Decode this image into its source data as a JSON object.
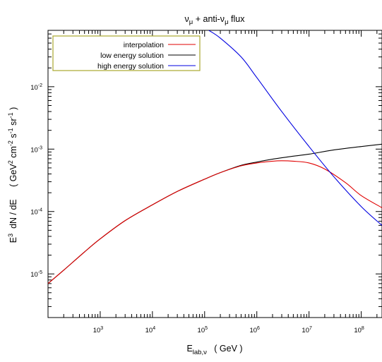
{
  "chart_data": {
    "type": "line",
    "title": {
      "base": "ν",
      "sub": "μ",
      "mid": " + anti-ν",
      "sub2": "μ",
      "tail": "  flux"
    },
    "xlabel": {
      "base": "E",
      "sub": "lab,ν",
      "tail": "   ( GeV )"
    },
    "ylabel": {
      "p1": "E",
      "sup1": "3",
      "p2": "  dN / dE     ( GeV",
      "sup2": "2",
      "p3": " cm",
      "sup3": "-2",
      "p4": " s",
      "sup4": "-1",
      "p5": " sr",
      "sup5": "-1",
      "p6": " )"
    },
    "x_scale": "log",
    "y_scale": "log",
    "xlim": [
      100,
      250000000
    ],
    "ylim": [
      2e-06,
      0.08
    ],
    "x_ticks": [
      {
        "value": 1000,
        "base": "10",
        "exp": "3"
      },
      {
        "value": 10000,
        "base": "10",
        "exp": "4"
      },
      {
        "value": 100000,
        "base": "10",
        "exp": "5"
      },
      {
        "value": 1000000,
        "base": "10",
        "exp": "6"
      },
      {
        "value": 10000000,
        "base": "10",
        "exp": "7"
      },
      {
        "value": 100000000,
        "base": "10",
        "exp": "8"
      }
    ],
    "y_ticks": [
      {
        "value": 1e-05,
        "base": "10",
        "exp": "-5"
      },
      {
        "value": 0.0001,
        "base": "10",
        "exp": "-4"
      },
      {
        "value": 0.001,
        "base": "10",
        "exp": "-3"
      },
      {
        "value": 0.01,
        "base": "10",
        "exp": "-2"
      }
    ],
    "legend_position": "top-left",
    "series": [
      {
        "name": "interpolation",
        "color": "#e00000",
        "x": [
          100,
          200,
          500,
          1000,
          3000,
          10000,
          30000,
          100000,
          200000,
          500000,
          1000000,
          2000000,
          3000000,
          5000000,
          10000000,
          20000000,
          50000000,
          100000000,
          250000000
        ],
        "y": [
          7e-06,
          1.15e-05,
          2.25e-05,
          3.65e-05,
          7.15e-05,
          0.000128,
          0.00021,
          0.00033,
          0.00042,
          0.00054,
          0.0006,
          0.00064,
          0.00065,
          0.00064,
          0.0006,
          0.00048,
          0.00029,
          0.00018,
          0.000115
        ]
      },
      {
        "name": "low energy solution",
        "color": "#000000",
        "x": [
          100,
          200,
          500,
          1000,
          3000,
          10000,
          30000,
          100000,
          200000,
          500000,
          1000000,
          2000000,
          5000000,
          10000000,
          30000000,
          100000000,
          250000000
        ],
        "y": [
          7e-06,
          1.15e-05,
          2.25e-05,
          3.65e-05,
          7.15e-05,
          0.000128,
          0.00021,
          0.00033,
          0.00042,
          0.00055,
          0.00062,
          0.00069,
          0.00077,
          0.00083,
          0.00097,
          0.0011,
          0.0012
        ]
      },
      {
        "name": "high energy solution",
        "color": "#0000e0",
        "x": [
          120000,
          200000,
          500000,
          1000000,
          3000000,
          10000000,
          30000000,
          100000000,
          250000000
        ],
        "y": [
          0.08,
          0.06,
          0.03,
          0.014,
          0.004,
          0.0011,
          0.00036,
          0.00012,
          6e-05
        ]
      }
    ]
  }
}
